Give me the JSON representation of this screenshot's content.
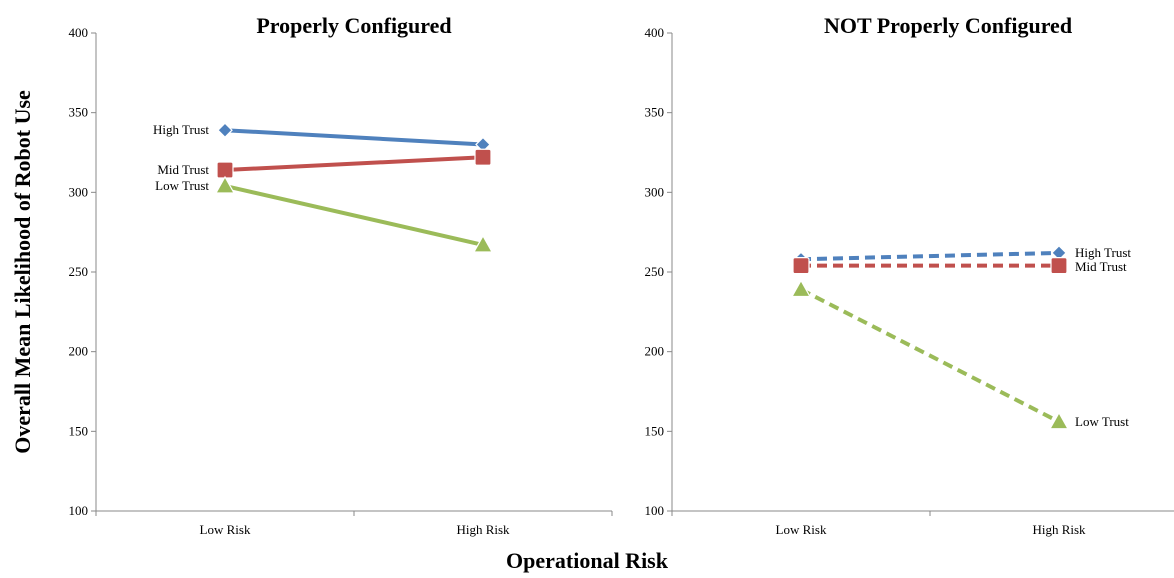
{
  "figure": {
    "ylabel": "Overall Mean Likelihood of Robot Use",
    "xlabel": "Operational Risk"
  },
  "colors": {
    "high_trust": "#4F81BD",
    "mid_trust": "#C0504D",
    "low_trust": "#9BBB59"
  },
  "chart_data": [
    {
      "type": "line",
      "title": "Properly Configured",
      "categories": [
        "Low Risk",
        "High Risk"
      ],
      "ylim": [
        100,
        400
      ],
      "yticks": [
        100,
        150,
        200,
        250,
        300,
        350,
        400
      ],
      "line_style": "solid",
      "series": [
        {
          "name": "High Trust",
          "key": "high_trust",
          "marker": "diamond",
          "values": [
            339,
            330
          ]
        },
        {
          "name": "Mid Trust",
          "key": "mid_trust",
          "marker": "square",
          "values": [
            314,
            322
          ]
        },
        {
          "name": "Low Trust",
          "key": "low_trust",
          "marker": "triangle",
          "values": [
            304,
            267
          ]
        }
      ],
      "label_side": "left",
      "grid": false
    },
    {
      "type": "line",
      "title": "NOT Properly Configured",
      "categories": [
        "Low Risk",
        "High Risk"
      ],
      "ylim": [
        100,
        400
      ],
      "yticks": [
        100,
        150,
        200,
        250,
        300,
        350,
        400
      ],
      "line_style": "dashed",
      "series": [
        {
          "name": "High Trust",
          "key": "high_trust",
          "marker": "diamond",
          "values": [
            258,
            262
          ]
        },
        {
          "name": "Mid Trust",
          "key": "mid_trust",
          "marker": "square",
          "values": [
            254,
            254
          ]
        },
        {
          "name": "Low Trust",
          "key": "low_trust",
          "marker": "triangle",
          "values": [
            239,
            156
          ]
        }
      ],
      "label_side": "right",
      "grid": false
    }
  ]
}
